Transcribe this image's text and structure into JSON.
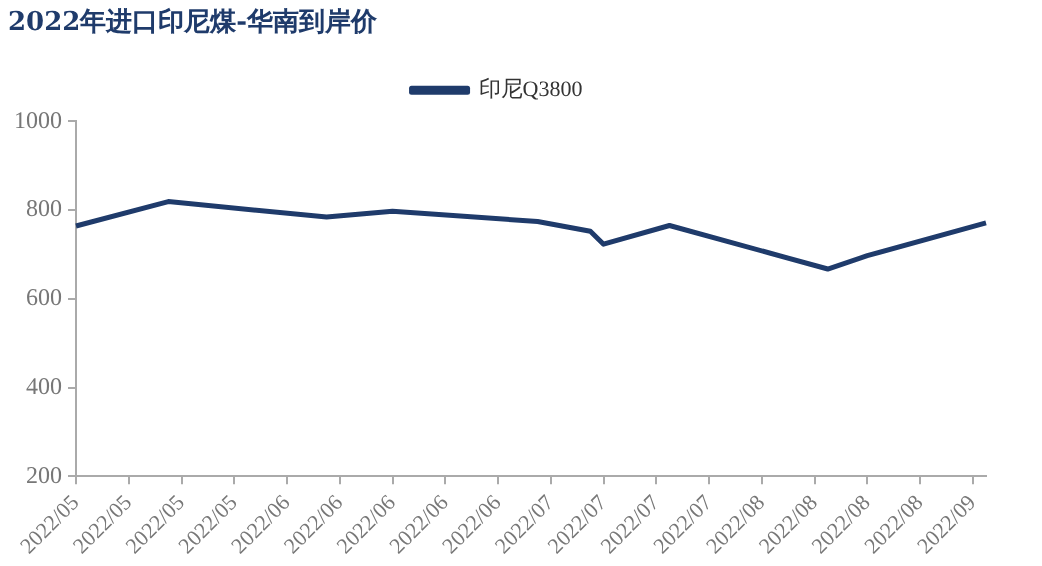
{
  "chart_data": {
    "type": "line",
    "title": "2022年进口印尼煤-华南到岸价",
    "categories": [
      "2022/05",
      null,
      null,
      null,
      "2022/05",
      null,
      null,
      null,
      "2022/05",
      null,
      null,
      null,
      "2022/05",
      null,
      null,
      null,
      "2022/06",
      null,
      null,
      null,
      "2022/06",
      null,
      null,
      null,
      "2022/06",
      null,
      null,
      null,
      "2022/06",
      null,
      null,
      null,
      "2022/06",
      null,
      null,
      null,
      "2022/07",
      null,
      null,
      null,
      "2022/07",
      null,
      null,
      null,
      "2022/07",
      null,
      null,
      null,
      "2022/07",
      null,
      null,
      null,
      "2022/08",
      null,
      null,
      null,
      "2022/08",
      null,
      null,
      null,
      "2022/08",
      null,
      null,
      null,
      "2022/08",
      null,
      null,
      null,
      "2022/09",
      null
    ],
    "series": [
      {
        "name": "印尼Q3800",
        "color": "#1f3b6b",
        "values": [
          764,
          null,
          null,
          null,
          null,
          null,
          null,
          819,
          null,
          null,
          null,
          null,
          null,
          null,
          null,
          null,
          null,
          null,
          null,
          784,
          null,
          null,
          null,
          null,
          797,
          null,
          null,
          null,
          null,
          null,
          null,
          null,
          null,
          null,
          null,
          774,
          null,
          null,
          null,
          752,
          723,
          null,
          null,
          null,
          null,
          765,
          null,
          null,
          null,
          null,
          null,
          null,
          null,
          null,
          null,
          null,
          null,
          667,
          null,
          null,
          697,
          null,
          null,
          null,
          null,
          null,
          null,
          null,
          null,
          771
        ]
      }
    ],
    "ylim": [
      200,
      1000
    ],
    "yticks": [
      200,
      400,
      600,
      800,
      1000
    ],
    "grid": false,
    "legend": "top",
    "marker": "none",
    "line_style": "solid"
  }
}
